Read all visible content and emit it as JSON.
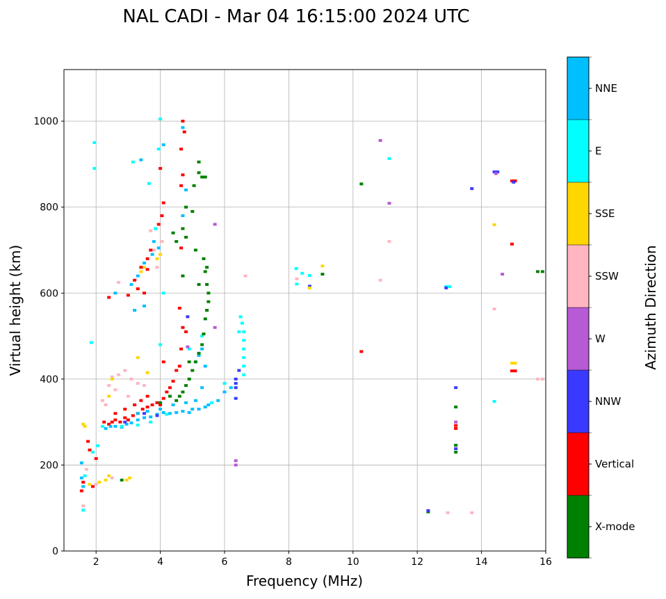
{
  "chart_data": {
    "type": "scatter",
    "title": "NAL CADI - Mar 04 16:15:00 2024 UTC",
    "xlabel": "Frequency (MHz)",
    "ylabel": "Virtual height (km)",
    "xlim": [
      1,
      16
    ],
    "ylim": [
      0,
      1120
    ],
    "xticks": [
      2,
      4,
      6,
      8,
      10,
      12,
      14,
      16
    ],
    "yticks": [
      0,
      200,
      400,
      600,
      800,
      1000
    ],
    "grid": true,
    "colorbar": {
      "label": "Azimuth Direction",
      "categories": [
        "X-mode",
        "Vertical",
        "NNW",
        "W",
        "SSW",
        "SSE",
        "E",
        "NNE"
      ],
      "colors": [
        "#008000",
        "#ff0000",
        "#3a3aff",
        "#b65ad6",
        "#ffb6c1",
        "#ffd700",
        "#00ffff",
        "#00bfff"
      ]
    },
    "points_format": [
      "frequency_mhz",
      "virtual_height_km",
      "category_index"
    ],
    "points": [
      [
        1.6,
        95,
        6
      ],
      [
        1.6,
        105,
        4
      ],
      [
        1.55,
        140,
        1
      ],
      [
        1.6,
        150,
        7
      ],
      [
        1.6,
        160,
        1
      ],
      [
        1.55,
        170,
        7
      ],
      [
        1.65,
        175,
        6
      ],
      [
        1.55,
        205,
        7
      ],
      [
        1.7,
        190,
        4
      ],
      [
        1.8,
        155,
        5
      ],
      [
        1.9,
        150,
        1
      ],
      [
        2.0,
        155,
        4
      ],
      [
        2.1,
        160,
        5
      ],
      [
        2.3,
        165,
        5
      ],
      [
        2.4,
        175,
        5
      ],
      [
        2.5,
        170,
        4
      ],
      [
        2.8,
        165,
        0
      ],
      [
        2.95,
        165,
        5
      ],
      [
        3.05,
        170,
        5
      ],
      [
        1.6,
        295,
        5
      ],
      [
        1.65,
        290,
        5
      ],
      [
        1.75,
        255,
        1
      ],
      [
        1.8,
        235,
        1
      ],
      [
        1.9,
        230,
        6
      ],
      [
        2.0,
        215,
        1
      ],
      [
        2.05,
        245,
        6
      ],
      [
        1.85,
        485,
        6
      ],
      [
        1.95,
        950,
        6
      ],
      [
        1.95,
        890,
        6
      ],
      [
        2.25,
        300,
        1
      ],
      [
        2.4,
        295,
        1
      ],
      [
        2.5,
        300,
        1
      ],
      [
        2.6,
        305,
        1
      ],
      [
        2.75,
        300,
        1
      ],
      [
        2.9,
        310,
        1
      ],
      [
        3.0,
        305,
        1
      ],
      [
        3.15,
        315,
        1
      ],
      [
        3.3,
        320,
        1
      ],
      [
        3.45,
        330,
        1
      ],
      [
        3.6,
        335,
        1
      ],
      [
        3.75,
        340,
        1
      ],
      [
        3.9,
        345,
        1
      ],
      [
        4.0,
        340,
        1
      ],
      [
        4.1,
        355,
        1
      ],
      [
        4.2,
        370,
        1
      ],
      [
        4.3,
        380,
        1
      ],
      [
        4.4,
        395,
        1
      ],
      [
        4.5,
        420,
        1
      ],
      [
        4.6,
        430,
        1
      ],
      [
        4.65,
        470,
        1
      ],
      [
        4.7,
        520,
        1
      ],
      [
        4.8,
        510,
        1
      ],
      [
        4.6,
        565,
        1
      ],
      [
        4.1,
        440,
        1
      ],
      [
        3.4,
        350,
        1
      ],
      [
        3.6,
        360,
        1
      ],
      [
        3.2,
        340,
        1
      ],
      [
        2.9,
        330,
        1
      ],
      [
        2.6,
        320,
        1
      ],
      [
        2.3,
        285,
        7
      ],
      [
        2.45,
        290,
        7
      ],
      [
        2.6,
        290,
        7
      ],
      [
        2.8,
        288,
        7
      ],
      [
        2.95,
        295,
        7
      ],
      [
        3.1,
        298,
        7
      ],
      [
        3.3,
        305,
        7
      ],
      [
        3.5,
        310,
        7
      ],
      [
        3.7,
        312,
        7
      ],
      [
        3.9,
        318,
        7
      ],
      [
        4.1,
        322,
        7
      ],
      [
        4.3,
        320,
        7
      ],
      [
        4.5,
        322,
        7
      ],
      [
        4.7,
        325,
        7
      ],
      [
        4.9,
        322,
        7
      ],
      [
        5.0,
        330,
        7
      ],
      [
        5.2,
        330,
        7
      ],
      [
        5.4,
        335,
        7
      ],
      [
        5.5,
        340,
        7
      ],
      [
        5.8,
        350,
        7
      ],
      [
        6.0,
        370,
        7
      ],
      [
        6.2,
        380,
        7
      ],
      [
        3.3,
        320,
        7
      ],
      [
        3.6,
        325,
        7
      ],
      [
        4.0,
        330,
        7
      ],
      [
        4.4,
        340,
        7
      ],
      [
        4.8,
        345,
        7
      ],
      [
        5.1,
        350,
        7
      ],
      [
        5.3,
        380,
        7
      ],
      [
        5.4,
        430,
        7
      ],
      [
        5.3,
        470,
        7
      ],
      [
        5.2,
        455,
        7
      ],
      [
        5.1,
        440,
        7
      ],
      [
        2.2,
        290,
        6
      ],
      [
        2.8,
        290,
        6
      ],
      [
        3.3,
        293,
        6
      ],
      [
        3.7,
        300,
        6
      ],
      [
        4.2,
        318,
        6
      ],
      [
        5.6,
        345,
        6
      ],
      [
        6.0,
        390,
        6
      ],
      [
        6.6,
        410,
        6
      ],
      [
        6.6,
        430,
        6
      ],
      [
        6.6,
        450,
        6
      ],
      [
        6.6,
        470,
        6
      ],
      [
        6.6,
        490,
        6
      ],
      [
        6.6,
        510,
        6
      ],
      [
        6.55,
        530,
        6
      ],
      [
        6.5,
        545,
        6
      ],
      [
        6.45,
        510,
        6
      ],
      [
        4.9,
        470,
        6
      ],
      [
        5.3,
        500,
        6
      ],
      [
        4.0,
        480,
        6
      ],
      [
        6.35,
        355,
        2
      ],
      [
        6.35,
        380,
        2
      ],
      [
        6.35,
        390,
        2
      ],
      [
        6.35,
        400,
        2
      ],
      [
        6.45,
        420,
        2
      ],
      [
        3.9,
        315,
        2
      ],
      [
        3.5,
        320,
        2
      ],
      [
        2.9,
        300,
        2
      ],
      [
        4.85,
        545,
        2
      ],
      [
        6.35,
        200,
        3
      ],
      [
        6.35,
        210,
        3
      ],
      [
        5.7,
        520,
        3
      ],
      [
        5.7,
        760,
        3
      ],
      [
        4.85,
        475,
        3
      ],
      [
        2.2,
        350,
        4
      ],
      [
        2.4,
        385,
        4
      ],
      [
        2.5,
        405,
        4
      ],
      [
        2.7,
        410,
        4
      ],
      [
        2.9,
        420,
        4
      ],
      [
        3.1,
        400,
        4
      ],
      [
        3.3,
        390,
        4
      ],
      [
        3.5,
        385,
        4
      ],
      [
        2.6,
        375,
        4
      ],
      [
        3.7,
        745,
        4
      ],
      [
        3.8,
        700,
        4
      ],
      [
        3.9,
        660,
        4
      ],
      [
        4.05,
        720,
        4
      ],
      [
        6.65,
        640,
        4
      ],
      [
        3.0,
        360,
        4
      ],
      [
        2.3,
        340,
        4
      ],
      [
        2.5,
        400,
        5
      ],
      [
        2.4,
        360,
        5
      ],
      [
        3.3,
        450,
        5
      ],
      [
        3.6,
        415,
        5
      ],
      [
        3.5,
        660,
        5
      ],
      [
        3.4,
        650,
        5
      ],
      [
        3.9,
        680,
        5
      ],
      [
        4.5,
        350,
        0
      ],
      [
        4.6,
        360,
        0
      ],
      [
        4.7,
        370,
        0
      ],
      [
        4.8,
        385,
        0
      ],
      [
        4.9,
        400,
        0
      ],
      [
        5.0,
        420,
        0
      ],
      [
        5.1,
        440,
        0
      ],
      [
        5.2,
        460,
        0
      ],
      [
        5.3,
        480,
        0
      ],
      [
        5.35,
        505,
        0
      ],
      [
        5.4,
        540,
        0
      ],
      [
        5.45,
        560,
        0
      ],
      [
        5.5,
        580,
        0
      ],
      [
        5.45,
        620,
        0
      ],
      [
        5.4,
        650,
        0
      ],
      [
        5.35,
        680,
        0
      ],
      [
        5.2,
        620,
        0
      ],
      [
        5.1,
        700,
        0
      ],
      [
        5.0,
        790,
        0
      ],
      [
        5.05,
        850,
        0
      ],
      [
        5.2,
        880,
        0
      ],
      [
        5.2,
        905,
        0
      ],
      [
        5.4,
        870,
        0
      ],
      [
        4.7,
        750,
        0
      ],
      [
        4.8,
        730,
        0
      ],
      [
        4.5,
        720,
        0
      ],
      [
        4.9,
        440,
        0
      ],
      [
        4.3,
        360,
        0
      ],
      [
        4.0,
        345,
        0
      ],
      [
        5.45,
        660,
        0
      ],
      [
        5.5,
        600,
        0
      ],
      [
        2.4,
        590,
        1
      ],
      [
        2.6,
        600,
        7
      ],
      [
        2.7,
        625,
        4
      ],
      [
        3.0,
        595,
        1
      ],
      [
        3.1,
        620,
        7
      ],
      [
        3.2,
        630,
        1
      ],
      [
        3.3,
        640,
        7
      ],
      [
        3.4,
        660,
        1
      ],
      [
        3.5,
        670,
        7
      ],
      [
        3.6,
        680,
        1
      ],
      [
        3.7,
        700,
        1
      ],
      [
        3.75,
        690,
        7
      ],
      [
        3.8,
        720,
        7
      ],
      [
        3.95,
        760,
        1
      ],
      [
        4.05,
        780,
        1
      ],
      [
        4.1,
        810,
        1
      ],
      [
        3.85,
        750,
        6
      ],
      [
        3.5,
        570,
        7
      ],
      [
        3.2,
        560,
        7
      ],
      [
        3.3,
        610,
        1
      ],
      [
        3.6,
        655,
        1
      ],
      [
        3.95,
        705,
        7
      ],
      [
        4.0,
        690,
        5
      ],
      [
        3.5,
        600,
        1
      ],
      [
        4.0,
        1005,
        6
      ],
      [
        4.1,
        945,
        7
      ],
      [
        3.95,
        935,
        6
      ],
      [
        4.0,
        890,
        1
      ],
      [
        3.65,
        855,
        6
      ],
      [
        3.15,
        905,
        6
      ],
      [
        3.4,
        910,
        7
      ],
      [
        4.7,
        1000,
        1
      ],
      [
        4.7,
        985,
        7
      ],
      [
        4.75,
        975,
        1
      ],
      [
        4.65,
        935,
        1
      ],
      [
        4.7,
        875,
        1
      ],
      [
        4.65,
        850,
        1
      ],
      [
        4.8,
        840,
        7
      ],
      [
        4.7,
        780,
        7
      ],
      [
        4.8,
        800,
        0
      ],
      [
        5.3,
        870,
        0
      ],
      [
        4.65,
        705,
        1
      ],
      [
        4.4,
        740,
        0
      ],
      [
        4.1,
        600,
        6
      ],
      [
        4.7,
        640,
        0
      ],
      [
        10.26,
        854,
        0
      ],
      [
        10.85,
        955,
        3
      ],
      [
        11.13,
        913,
        6
      ],
      [
        11.13,
        809,
        3
      ],
      [
        11.13,
        720,
        4
      ],
      [
        10.85,
        630,
        4
      ],
      [
        10.26,
        464,
        1
      ],
      [
        8.23,
        657,
        6
      ],
      [
        8.42,
        646,
        6
      ],
      [
        8.65,
        641,
        6
      ],
      [
        8.65,
        616,
        2
      ],
      [
        8.25,
        633,
        4
      ],
      [
        8.25,
        621,
        6
      ],
      [
        9.05,
        663,
        5
      ],
      [
        9.05,
        644,
        0
      ],
      [
        8.65,
        612,
        5
      ],
      [
        12.9,
        615,
        6
      ],
      [
        12.9,
        612,
        2
      ],
      [
        13.0,
        615,
        6
      ],
      [
        13.7,
        843,
        2
      ],
      [
        14.4,
        882,
        2
      ],
      [
        14.5,
        882,
        2
      ],
      [
        14.45,
        878,
        3
      ],
      [
        14.95,
        861,
        1
      ],
      [
        15.05,
        861,
        1
      ],
      [
        15.0,
        858,
        2
      ],
      [
        14.4,
        759,
        5
      ],
      [
        14.95,
        714,
        1
      ],
      [
        14.65,
        644,
        3
      ],
      [
        14.4,
        563,
        4
      ],
      [
        15.75,
        650,
        0
      ],
      [
        15.9,
        650,
        0
      ],
      [
        14.95,
        437,
        5
      ],
      [
        15.05,
        437,
        5
      ],
      [
        14.95,
        419,
        1
      ],
      [
        15.05,
        419,
        1
      ],
      [
        15.75,
        400,
        4
      ],
      [
        15.9,
        400,
        4
      ],
      [
        14.4,
        348,
        6
      ],
      [
        12.34,
        91,
        0
      ],
      [
        12.34,
        94,
        2
      ],
      [
        12.95,
        89,
        4
      ],
      [
        13.7,
        89,
        4
      ],
      [
        13.2,
        380,
        2
      ],
      [
        13.2,
        335,
        0
      ],
      [
        13.2,
        300,
        3
      ],
      [
        13.2,
        292,
        1
      ],
      [
        13.2,
        285,
        1
      ],
      [
        13.2,
        246,
        0
      ],
      [
        13.2,
        238,
        2
      ],
      [
        13.2,
        230,
        0
      ]
    ]
  }
}
